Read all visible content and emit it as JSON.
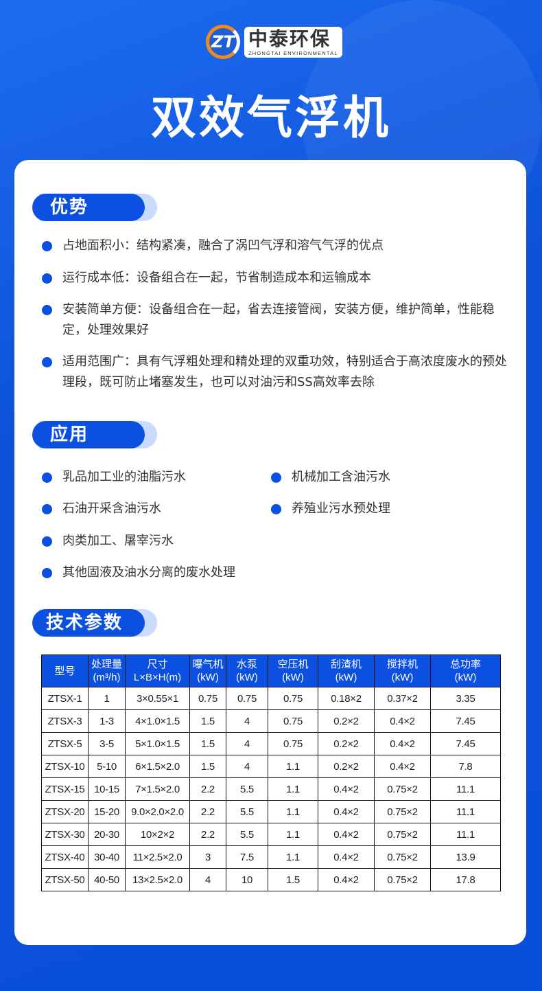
{
  "logo": {
    "cn": "中泰环保",
    "en": "ZHONGTAI ENVIRONMENTAL",
    "mark": "ZT"
  },
  "title": "双效气浮机",
  "advantages": {
    "heading": "优势",
    "items": [
      "占地面积小：结构紧凑，融合了涡凹气浮和溶气气浮的优点",
      "运行成本低：设备组合在一起，节省制造成本和运输成本",
      "安装简单方便：设备组合在一起，省去连接管阀，安装方便，维护简单，性能稳定，处理效果好",
      "适用范围广：具有气浮粗处理和精处理的双重功效，特别适合于高浓度废水的预处理段，既可防止堵塞发生，也可以对油污和SS高效率去除"
    ]
  },
  "applications": {
    "heading": "应用",
    "items": [
      "乳品加工业的油脂污水",
      "机械加工含油污水",
      "石油开采含油污水",
      "养殖业污水预处理",
      "肉类加工、屠宰污水",
      "其他固液及油水分离的废水处理"
    ]
  },
  "specs": {
    "heading": "技术参数",
    "columns": [
      [
        "型号",
        ""
      ],
      [
        "处理量",
        "(m³/h)"
      ],
      [
        "尺寸",
        "L×B×H(m)"
      ],
      [
        "曝气机",
        "(kW)"
      ],
      [
        "水泵",
        "(kW)"
      ],
      [
        "空压机",
        "(kW)"
      ],
      [
        "刮渣机",
        "(kW)"
      ],
      [
        "搅拌机",
        "(kW)"
      ],
      [
        "总功率",
        "(kW)"
      ]
    ],
    "rows": [
      [
        "ZTSX-1",
        "1",
        "3×0.55×1",
        "0.75",
        "0.75",
        "0.75",
        "0.18×2",
        "0.37×2",
        "3.35"
      ],
      [
        "ZTSX-3",
        "1-3",
        "4×1.0×1.5",
        "1.5",
        "4",
        "0.75",
        "0.2×2",
        "0.4×2",
        "7.45"
      ],
      [
        "ZTSX-5",
        "3-5",
        "5×1.0×1.5",
        "1.5",
        "4",
        "0.75",
        "0.2×2",
        "0.4×2",
        "7.45"
      ],
      [
        "ZTSX-10",
        "5-10",
        "6×1.5×2.0",
        "1.5",
        "4",
        "1.1",
        "0.2×2",
        "0.4×2",
        "7.8"
      ],
      [
        "ZTSX-15",
        "10-15",
        "7×1.5×2.0",
        "2.2",
        "5.5",
        "1.1",
        "0.4×2",
        "0.75×2",
        "11.1"
      ],
      [
        "ZTSX-20",
        "15-20",
        "9.0×2.0×2.0",
        "2.2",
        "5.5",
        "1.1",
        "0.4×2",
        "0.75×2",
        "11.1"
      ],
      [
        "ZTSX-30",
        "20-30",
        "10×2×2",
        "2.2",
        "5.5",
        "1.1",
        "0.4×2",
        "0.75×2",
        "11.1"
      ],
      [
        "ZTSX-40",
        "30-40",
        "11×2.5×2.0",
        "3",
        "7.5",
        "1.1",
        "0.4×2",
        "0.75×2",
        "13.9"
      ],
      [
        "ZTSX-50",
        "40-50",
        "13×2.5×2.0",
        "4",
        "10",
        "1.5",
        "0.4×2",
        "0.75×2",
        "17.8"
      ]
    ]
  },
  "colors": {
    "primary": "#0b50e0",
    "accent": "#f08a1e"
  }
}
